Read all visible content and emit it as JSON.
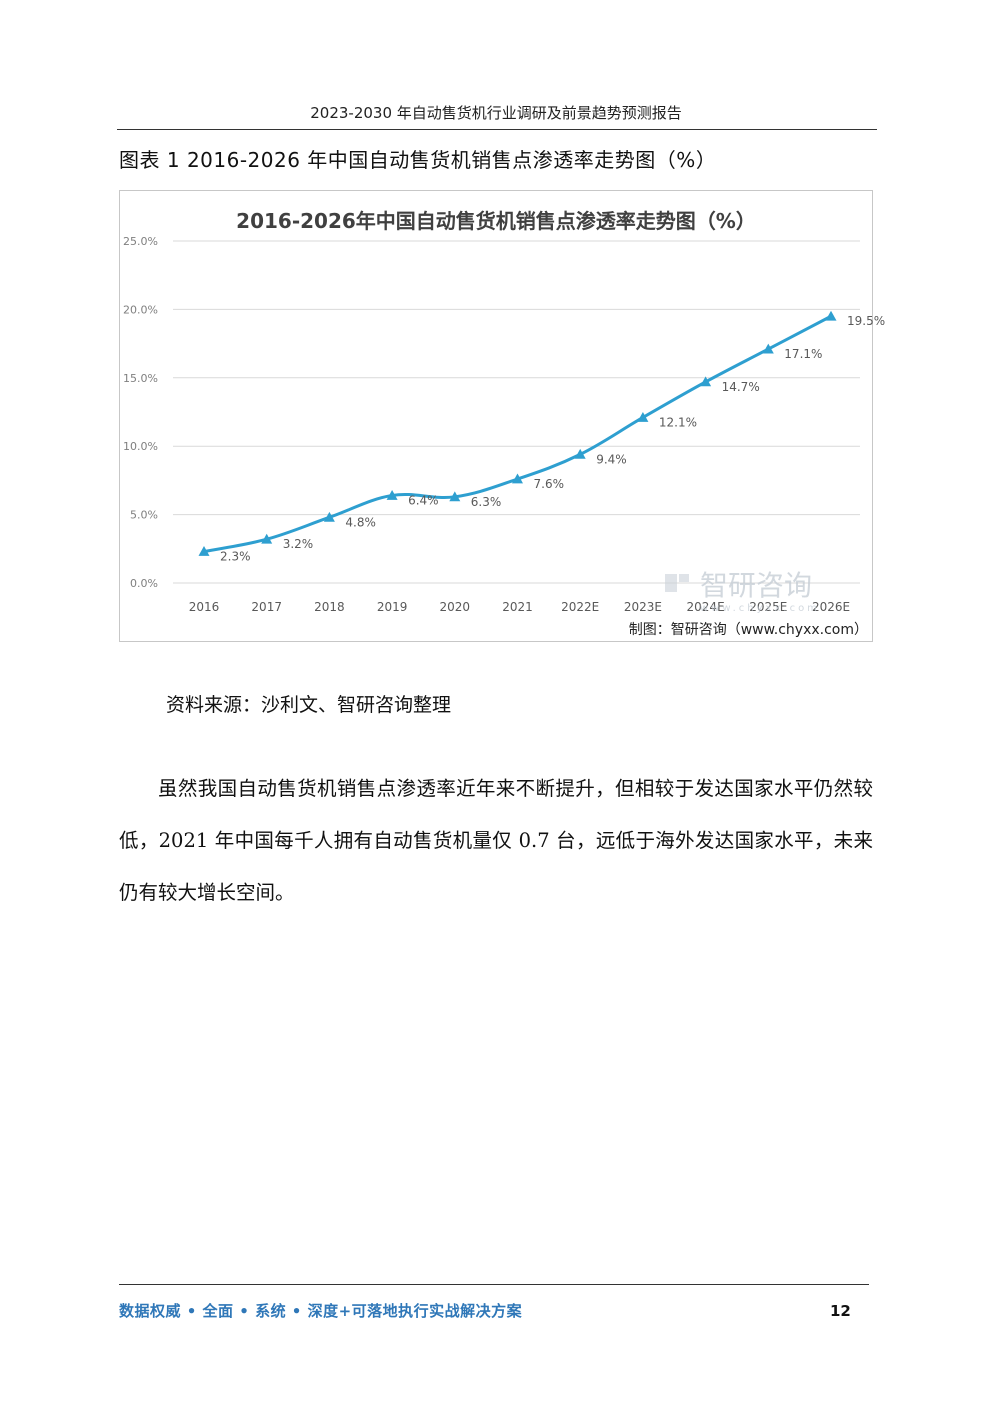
{
  "header": {
    "title": "2023-2030 年自动售货机行业调研及前景趋势预测报告"
  },
  "figure": {
    "caption": "图表  1 2016-2026 年中国自动售货机销售点渗透率走势图（%）"
  },
  "chart_data": {
    "type": "line",
    "title": "2016-2026年中国自动售货机销售点渗透率走势图（%）",
    "categories": [
      "2016",
      "2017",
      "2018",
      "2019",
      "2020",
      "2021",
      "2022E",
      "2023E",
      "2024E",
      "2025E",
      "2026E"
    ],
    "values": [
      2.3,
      3.2,
      4.8,
      6.4,
      6.3,
      7.6,
      9.4,
      12.1,
      14.7,
      17.1,
      19.5
    ],
    "value_labels": [
      "2.3%",
      "3.2%",
      "4.8%",
      "6.4%",
      "6.3%",
      "7.6%",
      "9.4%",
      "12.1%",
      "14.7%",
      "17.1%",
      "19.5%"
    ],
    "y_ticks": [
      "0.0%",
      "5.0%",
      "10.0%",
      "15.0%",
      "20.0%",
      "25.0%"
    ],
    "ylim": [
      0,
      25
    ],
    "grid": true,
    "line_color": "#2e9fd0",
    "watermark": "智研咨询",
    "watermark_url": "www.chyxx.com",
    "credit": "制图：智研咨询（www.chyxx.com）"
  },
  "source_note": "资料来源：沙利文、智研咨询整理",
  "body": {
    "paragraph": "虽然我国自动售货机销售点渗透率近年来不断提升，但相较于发达国家水平仍然较低，2021 年中国每千人拥有自动售货机量仅 0.7 台，远低于海外发达国家水平，未来仍有较大增长空间。"
  },
  "footer": {
    "tagline": "数据权威 • 全面 • 系统 • 深度+可落地执行实战解决方案",
    "page_number": "12"
  }
}
